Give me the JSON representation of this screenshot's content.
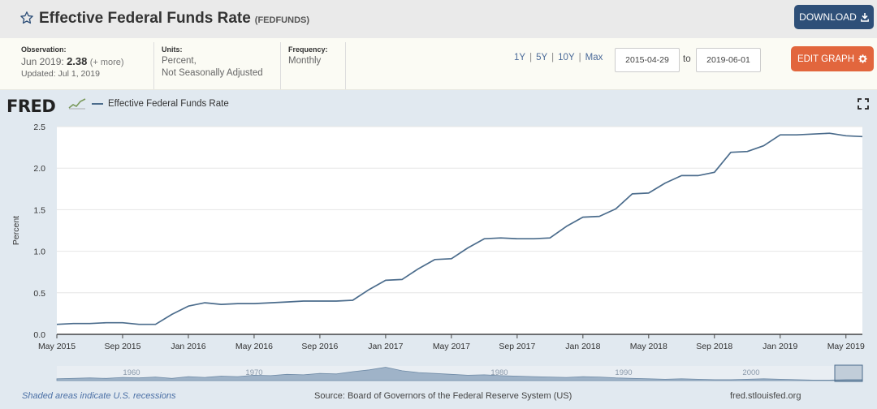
{
  "header": {
    "title": "Effective Federal Funds Rate",
    "series_id": "(FEDFUNDS)",
    "download_label": "DOWNLOAD"
  },
  "meta": {
    "observation_label": "Observation:",
    "observation_period": "Jun 2019:",
    "observation_value": "2.38",
    "observation_more": "(+ more)",
    "updated": "Updated: Jul 1, 2019",
    "units_label": "Units:",
    "units_line1": "Percent,",
    "units_line2": "Not Seasonally Adjusted",
    "frequency_label": "Frequency:",
    "frequency_value": "Monthly"
  },
  "controls": {
    "ranges": [
      "1Y",
      "5Y",
      "10Y",
      "Max"
    ],
    "start_date": "2015-04-29",
    "to_label": "to",
    "end_date": "2019-06-01",
    "edit_label": "EDIT GRAPH"
  },
  "graph": {
    "logo": "FRED",
    "legend": "Effective Federal Funds Rate"
  },
  "footer": {
    "recessions": "Shaded areas indicate U.S. recessions",
    "source": "Source: Board of Governors of the Federal Reserve System (US)",
    "site": "fred.stlouisfed.org"
  },
  "colors": {
    "line": "#4b6c8c",
    "header_bg": "#eaeaea",
    "graph_bg": "#e1e9f0",
    "download": "#2e4f78",
    "edit": "#e2663d"
  },
  "chart_data": {
    "type": "line",
    "ylabel": "Percent",
    "ylim": [
      0,
      2.5
    ],
    "yticks": [
      "0.0",
      "0.5",
      "1.0",
      "1.5",
      "2.0",
      "2.5"
    ],
    "xticks": [
      "May 2015",
      "Sep 2015",
      "Jan 2016",
      "May 2016",
      "Sep 2016",
      "Jan 2017",
      "May 2017",
      "Sep 2017",
      "Jan 2018",
      "May 2018",
      "Sep 2018",
      "Jan 2019",
      "May 2019"
    ],
    "navigator_labels": [
      "1960",
      "1970",
      "1980",
      "1990",
      "2000"
    ],
    "grid": true,
    "series": [
      {
        "name": "Effective Federal Funds Rate",
        "x": [
          "2015-05",
          "2015-06",
          "2015-07",
          "2015-08",
          "2015-09",
          "2015-10",
          "2015-11",
          "2015-12",
          "2016-01",
          "2016-02",
          "2016-03",
          "2016-04",
          "2016-05",
          "2016-06",
          "2016-07",
          "2016-08",
          "2016-09",
          "2016-10",
          "2016-11",
          "2016-12",
          "2017-01",
          "2017-02",
          "2017-03",
          "2017-04",
          "2017-05",
          "2017-06",
          "2017-07",
          "2017-08",
          "2017-09",
          "2017-10",
          "2017-11",
          "2017-12",
          "2018-01",
          "2018-02",
          "2018-03",
          "2018-04",
          "2018-05",
          "2018-06",
          "2018-07",
          "2018-08",
          "2018-09",
          "2018-10",
          "2018-11",
          "2018-12",
          "2019-01",
          "2019-02",
          "2019-03",
          "2019-04",
          "2019-05",
          "2019-06"
        ],
        "values": [
          0.12,
          0.13,
          0.13,
          0.14,
          0.14,
          0.12,
          0.12,
          0.24,
          0.34,
          0.38,
          0.36,
          0.37,
          0.37,
          0.38,
          0.39,
          0.4,
          0.4,
          0.4,
          0.41,
          0.54,
          0.65,
          0.66,
          0.79,
          0.9,
          0.91,
          1.04,
          1.15,
          1.16,
          1.15,
          1.15,
          1.16,
          1.3,
          1.41,
          1.42,
          1.51,
          1.69,
          1.7,
          1.82,
          1.91,
          1.91,
          1.95,
          2.19,
          2.2,
          2.27,
          2.4,
          2.4,
          2.41,
          2.42,
          2.39,
          2.38
        ]
      }
    ]
  }
}
